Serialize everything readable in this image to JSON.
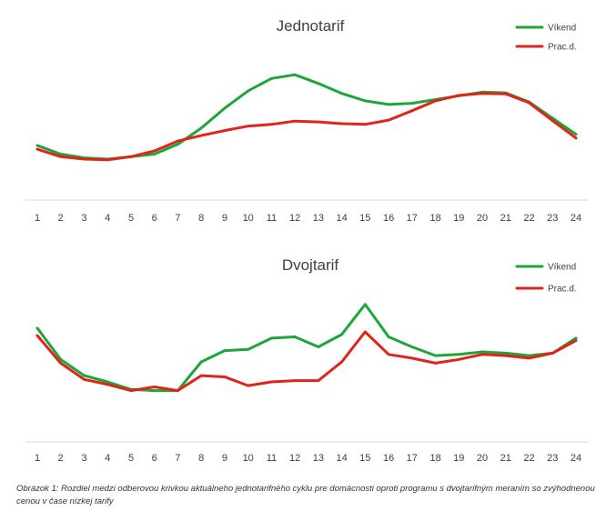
{
  "chart_data": [
    {
      "type": "line",
      "title": "Jednotarif",
      "categories": [
        "1",
        "2",
        "3",
        "4",
        "5",
        "6",
        "7",
        "8",
        "9",
        "10",
        "11",
        "12",
        "13",
        "14",
        "15",
        "16",
        "17",
        "18",
        "19",
        "20",
        "21",
        "22",
        "23",
        "24"
      ],
      "ylim": [
        0,
        7
      ],
      "grid": false,
      "legend_position": "top-right",
      "series": [
        {
          "name": "Víkend",
          "color": "#1ea53a",
          "values": [
            2.2,
            1.85,
            1.7,
            1.65,
            1.75,
            1.85,
            2.25,
            2.9,
            3.7,
            4.4,
            4.9,
            5.05,
            4.7,
            4.3,
            4.0,
            3.85,
            3.9,
            4.05,
            4.2,
            4.35,
            4.32,
            3.95,
            3.3,
            2.65
          ]
        },
        {
          "name": "Prac.d.",
          "color": "#e2231a",
          "values": [
            2.05,
            1.75,
            1.65,
            1.62,
            1.75,
            1.98,
            2.38,
            2.6,
            2.8,
            2.98,
            3.05,
            3.18,
            3.15,
            3.08,
            3.05,
            3.22,
            3.6,
            4.0,
            4.22,
            4.3,
            4.28,
            3.92,
            3.2,
            2.5
          ]
        }
      ]
    },
    {
      "type": "line",
      "title": "Dvojtarif",
      "categories": [
        "1",
        "2",
        "3",
        "4",
        "5",
        "6",
        "7",
        "8",
        "9",
        "10",
        "11",
        "12",
        "13",
        "14",
        "15",
        "16",
        "17",
        "18",
        "19",
        "20",
        "21",
        "22",
        "23",
        "24"
      ],
      "ylim": [
        0,
        7.2
      ],
      "grid": false,
      "legend_position": "top-right",
      "series": [
        {
          "name": "Víkend",
          "color": "#1ea53a",
          "values": [
            4.55,
            3.3,
            2.65,
            2.4,
            2.1,
            2.05,
            2.05,
            3.2,
            3.65,
            3.7,
            4.15,
            4.2,
            3.8,
            4.3,
            5.5,
            4.2,
            3.8,
            3.45,
            3.5,
            3.6,
            3.55,
            3.45,
            3.55,
            4.15
          ]
        },
        {
          "name": "Prac.d.",
          "color": "#e2231a",
          "values": [
            4.25,
            3.15,
            2.5,
            2.3,
            2.05,
            2.2,
            2.05,
            2.65,
            2.6,
            2.25,
            2.4,
            2.45,
            2.45,
            3.2,
            4.4,
            3.5,
            3.35,
            3.15,
            3.3,
            3.5,
            3.45,
            3.35,
            3.55,
            4.05
          ]
        }
      ]
    }
  ],
  "caption": "Obrázok 1: Rozdiel medzi odberovou krivkou aktuálneho jednotarifného cyklu pre domácnosti oproti programu s dvojtarifným meraním so zvýhodnenou cenou v čase nízkej tarify"
}
